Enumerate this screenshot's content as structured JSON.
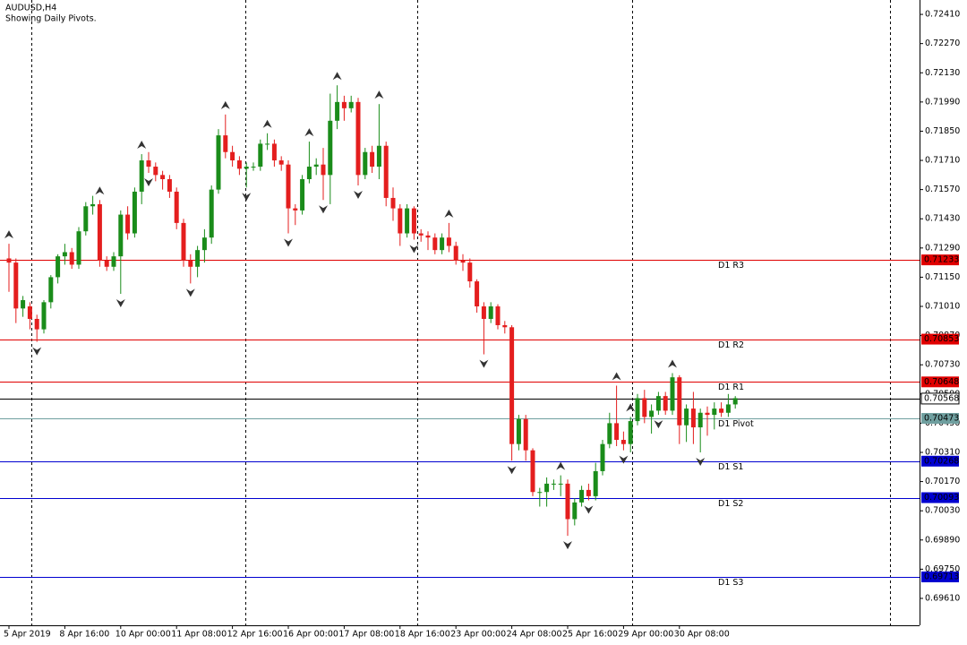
{
  "chart_data": {
    "type": "candlestick",
    "title": "AUDUSD,H4",
    "subtitle": "Showing Daily Pivots.",
    "categories": [
      "5 Apr 2019",
      null,
      null,
      null,
      null,
      null,
      null,
      null,
      "8 Apr 16:00",
      null,
      null,
      null,
      null,
      null,
      null,
      null,
      "10 Apr 00:00",
      null,
      null,
      null,
      null,
      null,
      null,
      null,
      "11 Apr 08:00",
      null,
      null,
      null,
      null,
      null,
      null,
      null,
      "12 Apr 16:00",
      null,
      null,
      null,
      null,
      null,
      null,
      null,
      "16 Apr 00:00",
      null,
      null,
      null,
      null,
      null,
      null,
      null,
      "17 Apr 08:00",
      null,
      null,
      null,
      null,
      null,
      null,
      null,
      "18 Apr 16:00",
      null,
      null,
      null,
      null,
      null,
      null,
      null,
      "23 Apr 00:00",
      null,
      null,
      null,
      null,
      null,
      null,
      null,
      "24 Apr 08:00",
      null,
      null,
      null,
      null,
      null,
      null,
      null,
      "25 Apr 16:00",
      null,
      null,
      null,
      null,
      null,
      null,
      null,
      "29 Apr 00:00",
      null,
      null,
      null,
      null,
      null,
      null,
      null,
      "30 Apr 08:00",
      null,
      null,
      null,
      null,
      null,
      null,
      null,
      null
    ],
    "open": [
      0.7124,
      0.7122,
      0.71,
      0.7101,
      0.7095,
      0.709,
      0.7103,
      0.7115,
      0.7125,
      0.7127,
      0.7121,
      0.7137,
      0.7149,
      0.715,
      0.7123,
      0.712,
      0.7125,
      0.7145,
      0.7136,
      0.7156,
      0.7171,
      0.7168,
      0.7164,
      0.7162,
      0.7156,
      0.7141,
      0.7123,
      0.712,
      0.7128,
      0.7134,
      0.7157,
      0.7183,
      0.7175,
      0.7171,
      0.7167,
      0.7168,
      0.7168,
      0.7179,
      0.7179,
      0.7171,
      0.7169,
      0.7148,
      0.7147,
      0.7162,
      0.7168,
      0.7169,
      0.7164,
      0.719,
      0.7199,
      0.7196,
      0.7199,
      0.7164,
      0.7175,
      0.7168,
      0.7178,
      0.7153,
      0.7148,
      0.7136,
      0.7148,
      0.7136,
      0.7135,
      0.7134,
      0.7128,
      0.7134,
      0.713,
      0.7123,
      0.7122,
      0.7113,
      0.7101,
      0.7095,
      0.7101,
      0.7092,
      0.7091,
      0.7035,
      0.7047,
      0.7032,
      0.7012,
      0.7012,
      0.7016,
      0.7016,
      0.7016,
      0.6999,
      0.7007,
      0.7013,
      0.701,
      0.7022,
      0.7035,
      0.7045,
      0.7037,
      0.7035,
      0.7046,
      0.7057,
      0.7048,
      0.7051,
      0.7058,
      0.7051,
      0.7067,
      0.7044,
      0.7052,
      0.7043,
      0.705,
      0.7049,
      0.7052,
      0.705,
      0.7054
    ],
    "high": [
      0.7131,
      0.7124,
      0.7106,
      0.7103,
      0.7097,
      0.7104,
      0.7116,
      0.7126,
      0.7131,
      0.7129,
      0.7139,
      0.7151,
      0.7154,
      0.7152,
      0.7125,
      0.7127,
      0.7147,
      0.7149,
      0.7158,
      0.7174,
      0.7175,
      0.717,
      0.7166,
      0.7164,
      0.7158,
      0.7143,
      0.7126,
      0.713,
      0.7138,
      0.7159,
      0.7186,
      0.7193,
      0.7178,
      0.7173,
      0.717,
      0.717,
      0.7181,
      0.7184,
      0.7181,
      0.7173,
      0.7171,
      0.715,
      0.7164,
      0.718,
      0.7172,
      0.7177,
      0.7203,
      0.7207,
      0.7202,
      0.7202,
      0.7201,
      0.7177,
      0.7178,
      0.7198,
      0.718,
      0.7158,
      0.715,
      0.715,
      0.7149,
      0.7138,
      0.7137,
      0.7136,
      0.7136,
      0.7141,
      0.7132,
      0.7126,
      0.7124,
      0.7114,
      0.7103,
      0.7103,
      0.7102,
      0.7094,
      0.7092,
      0.7049,
      0.7049,
      0.7033,
      0.7014,
      0.7019,
      0.7018,
      0.702,
      0.7018,
      0.7009,
      0.7015,
      0.7016,
      0.7026,
      0.7037,
      0.705,
      0.7063,
      0.7041,
      0.7048,
      0.7059,
      0.7061,
      0.7054,
      0.706,
      0.706,
      0.7069,
      0.7068,
      0.7054,
      0.706,
      0.7052,
      0.7053,
      0.7055,
      0.7055,
      0.7059,
      0.7058
    ],
    "low": [
      0.7108,
      0.7093,
      0.7096,
      0.709,
      0.7084,
      0.7088,
      0.71,
      0.7112,
      0.7121,
      0.7119,
      0.7119,
      0.7135,
      0.7145,
      0.712,
      0.7118,
      0.7118,
      0.7107,
      0.7133,
      0.7134,
      0.715,
      0.7165,
      0.7161,
      0.7157,
      0.7153,
      0.7138,
      0.712,
      0.7112,
      0.7115,
      0.7122,
      0.7131,
      0.7155,
      0.7172,
      0.7168,
      0.7164,
      0.7158,
      0.7166,
      0.7166,
      0.7176,
      0.7168,
      0.7166,
      0.7136,
      0.714,
      0.7145,
      0.716,
      0.7164,
      0.7152,
      0.715,
      0.7186,
      0.719,
      0.7194,
      0.7159,
      0.7162,
      0.7165,
      0.7162,
      0.7149,
      0.7142,
      0.713,
      0.7134,
      0.7133,
      0.7132,
      0.7128,
      0.7126,
      0.7126,
      0.7127,
      0.7121,
      0.7118,
      0.711,
      0.7098,
      0.7078,
      0.7093,
      0.709,
      0.7088,
      0.7027,
      0.7032,
      0.7027,
      0.701,
      0.7005,
      0.7005,
      0.7013,
      0.701,
      0.6991,
      0.6996,
      0.7005,
      0.7008,
      0.7008,
      0.702,
      0.7033,
      0.7034,
      0.7032,
      0.7031,
      0.7044,
      0.7045,
      0.704,
      0.7049,
      0.7049,
      0.7049,
      0.7035,
      0.7036,
      0.7035,
      0.7031,
      0.7039,
      0.7042,
      0.7048,
      0.7048,
      0.7052
    ],
    "close": [
      0.7122,
      0.71,
      0.7104,
      0.7095,
      0.709,
      0.7103,
      0.7115,
      0.7125,
      0.7127,
      0.7121,
      0.7137,
      0.7149,
      0.715,
      0.7123,
      0.712,
      0.7125,
      0.7145,
      0.7136,
      0.7156,
      0.7171,
      0.7168,
      0.7164,
      0.7162,
      0.7156,
      0.7141,
      0.7123,
      0.712,
      0.7128,
      0.7134,
      0.7157,
      0.7183,
      0.7175,
      0.7171,
      0.7167,
      0.7168,
      0.7168,
      0.7179,
      0.7179,
      0.7171,
      0.7169,
      0.7148,
      0.7147,
      0.7162,
      0.7168,
      0.7169,
      0.7164,
      0.719,
      0.7199,
      0.7196,
      0.7199,
      0.7164,
      0.7175,
      0.7168,
      0.7178,
      0.7153,
      0.7148,
      0.7136,
      0.7148,
      0.7136,
      0.7135,
      0.7134,
      0.7128,
      0.7134,
      0.713,
      0.7123,
      0.7122,
      0.7113,
      0.7101,
      0.7095,
      0.7101,
      0.7092,
      0.7091,
      0.7035,
      0.7047,
      0.7032,
      0.7012,
      0.7012,
      0.7016,
      0.7016,
      0.7016,
      0.6999,
      0.7007,
      0.7013,
      0.701,
      0.7022,
      0.7035,
      0.7045,
      0.7037,
      0.7035,
      0.7046,
      0.7057,
      0.7048,
      0.7051,
      0.7058,
      0.7051,
      0.7067,
      0.7044,
      0.7052,
      0.7043,
      0.705,
      0.7049,
      0.7052,
      0.705,
      0.7054,
      0.7057
    ],
    "up_color": "#1a8c1a",
    "down_color": "#e41e1e",
    "ylim": [
      0.69481,
      0.72479
    ],
    "yticks": [
      {
        "value": 0.7241,
        "label": "0.72410"
      },
      {
        "value": 0.7227,
        "label": "0.72270"
      },
      {
        "value": 0.7213,
        "label": "0.72130"
      },
      {
        "value": 0.7199,
        "label": "0.71990"
      },
      {
        "value": 0.7185,
        "label": "0.71850"
      },
      {
        "value": 0.7171,
        "label": "0.71710"
      },
      {
        "value": 0.7157,
        "label": "0.71570"
      },
      {
        "value": 0.7143,
        "label": "0.71430"
      },
      {
        "value": 0.7129,
        "label": "0.71290"
      },
      {
        "value": 0.7115,
        "label": "0.71150"
      },
      {
        "value": 0.7101,
        "label": "0.71010"
      },
      {
        "value": 0.7087,
        "label": "0.70870"
      },
      {
        "value": 0.7073,
        "label": "0.70730"
      },
      {
        "value": 0.7059,
        "label": "0.70590"
      },
      {
        "value": 0.7045,
        "label": "0.70450"
      },
      {
        "value": 0.7031,
        "label": "0.70310"
      },
      {
        "value": 0.7017,
        "label": "0.70170"
      },
      {
        "value": 0.7003,
        "label": "0.70030"
      },
      {
        "value": 0.6989,
        "label": "0.69890"
      },
      {
        "value": 0.6975,
        "label": "0.69750"
      },
      {
        "value": 0.6961,
        "label": "0.69610"
      }
    ],
    "fractals": {
      "color": "#333333",
      "up": [
        0,
        13,
        19,
        31,
        37,
        43,
        47,
        53,
        63,
        79,
        87,
        89,
        95
      ],
      "down": [
        4,
        16,
        20,
        26,
        34,
        40,
        45,
        50,
        58,
        68,
        72,
        80,
        83,
        88,
        93,
        99
      ]
    },
    "levels": [
      {
        "name": "D1 R3",
        "price": {
          "value": 0.71233,
          "label": "0.71233"
        },
        "color": "#e00000"
      },
      {
        "name": "D1 R2",
        "price": {
          "value": 0.70853,
          "label": "0.70853"
        },
        "color": "#e00000"
      },
      {
        "name": "D1 R1",
        "price": {
          "value": 0.70648,
          "label": "0.70648"
        },
        "color": "#e00000"
      },
      {
        "name": "D1 Pivot",
        "price": {
          "value": 0.70473,
          "label": "0.70473"
        },
        "color": "#6f9f9f"
      },
      {
        "name": "D1 S1",
        "price": {
          "value": 0.70268,
          "label": "0.70268"
        },
        "color": "#0000d0"
      },
      {
        "name": "D1 S2",
        "price": {
          "value": 0.70093,
          "label": "0.70093"
        },
        "color": "#0000d0"
      },
      {
        "name": "D1 S3",
        "price": {
          "value": 0.69713,
          "label": "0.69713"
        },
        "color": "#0000d0"
      }
    ],
    "current_price": {
      "value": 0.70568,
      "label": "0.70568"
    }
  }
}
